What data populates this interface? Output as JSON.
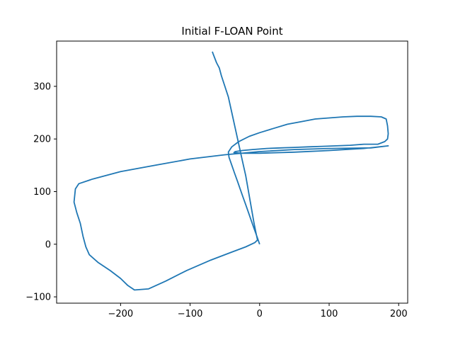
{
  "chart_data": {
    "type": "line",
    "title": "Initial F-LOAN Point",
    "xlabel": "",
    "ylabel": "",
    "xlim": [
      -292,
      213
    ],
    "ylim": [
      -112,
      386
    ],
    "grid": false,
    "legend": "none",
    "line_color": "#1f77b4",
    "x_ticks": [
      -200,
      -100,
      0,
      100,
      200
    ],
    "x_tick_labels": [
      "−200",
      "−100",
      "0",
      "100",
      "200"
    ],
    "y_ticks": [
      -100,
      0,
      100,
      200,
      300
    ],
    "y_tick_labels": [
      "−100",
      "0",
      "100",
      "200",
      "300"
    ],
    "series": [
      {
        "x": [
          0,
          -4,
          -8,
          -12,
          -16,
          -20,
          -24,
          -28,
          -32,
          -36,
          -40,
          -44,
          -45,
          -40,
          -30,
          -15,
          0,
          20,
          40,
          60,
          80,
          100,
          120,
          140,
          160,
          175,
          182,
          184,
          185,
          184,
          180,
          170,
          150,
          130,
          110,
          90,
          70,
          50,
          30,
          10,
          -10,
          -25,
          -35,
          -37,
          -25,
          0,
          50,
          100,
          150,
          185,
          160,
          100,
          50,
          0,
          -50,
          -100,
          -150,
          -200,
          -240,
          -260,
          -265,
          -267,
          -263,
          -258,
          -254,
          -250,
          -245,
          -232,
          -215,
          -200,
          -190,
          -180,
          -160,
          -135,
          -105,
          -70,
          -40,
          -20,
          -7,
          -3,
          -5,
          -8,
          -12,
          -16,
          -20,
          -25,
          -30,
          -35,
          -40,
          -45,
          -50,
          -55,
          -58,
          -62,
          -65,
          -67,
          -68
        ],
        "y": [
          0,
          15,
          30,
          45,
          60,
          75,
          90,
          105,
          120,
          135,
          150,
          165,
          175,
          185,
          195,
          205,
          212,
          220,
          228,
          233,
          238,
          240,
          242,
          243,
          243,
          242,
          238,
          225,
          210,
          200,
          195,
          190,
          190,
          188,
          187,
          186,
          185,
          184,
          183,
          182,
          180,
          178,
          176,
          174,
          173,
          173,
          175,
          178,
          182,
          187,
          183,
          182,
          180,
          176,
          170,
          162,
          150,
          138,
          124,
          115,
          105,
          80,
          60,
          40,
          15,
          -5,
          -20,
          -35,
          -50,
          -65,
          -78,
          -87,
          -85,
          -70,
          -50,
          -30,
          -15,
          -5,
          3,
          8,
          20,
          40,
          70,
          100,
          130,
          160,
          190,
          220,
          250,
          280,
          300,
          320,
          335,
          345,
          355,
          362,
          366
        ]
      }
    ]
  }
}
